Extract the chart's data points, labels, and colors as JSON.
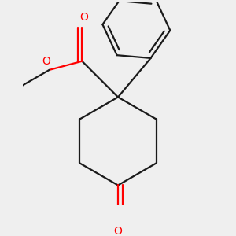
{
  "background_color": "#efefef",
  "bond_color": "#1a1a1a",
  "oxygen_color": "#ff0000",
  "line_width": 1.6,
  "figsize": [
    3.0,
    3.0
  ],
  "dpi": 100,
  "xlim": [
    -2.8,
    2.8
  ],
  "ylim": [
    -3.2,
    2.8
  ]
}
